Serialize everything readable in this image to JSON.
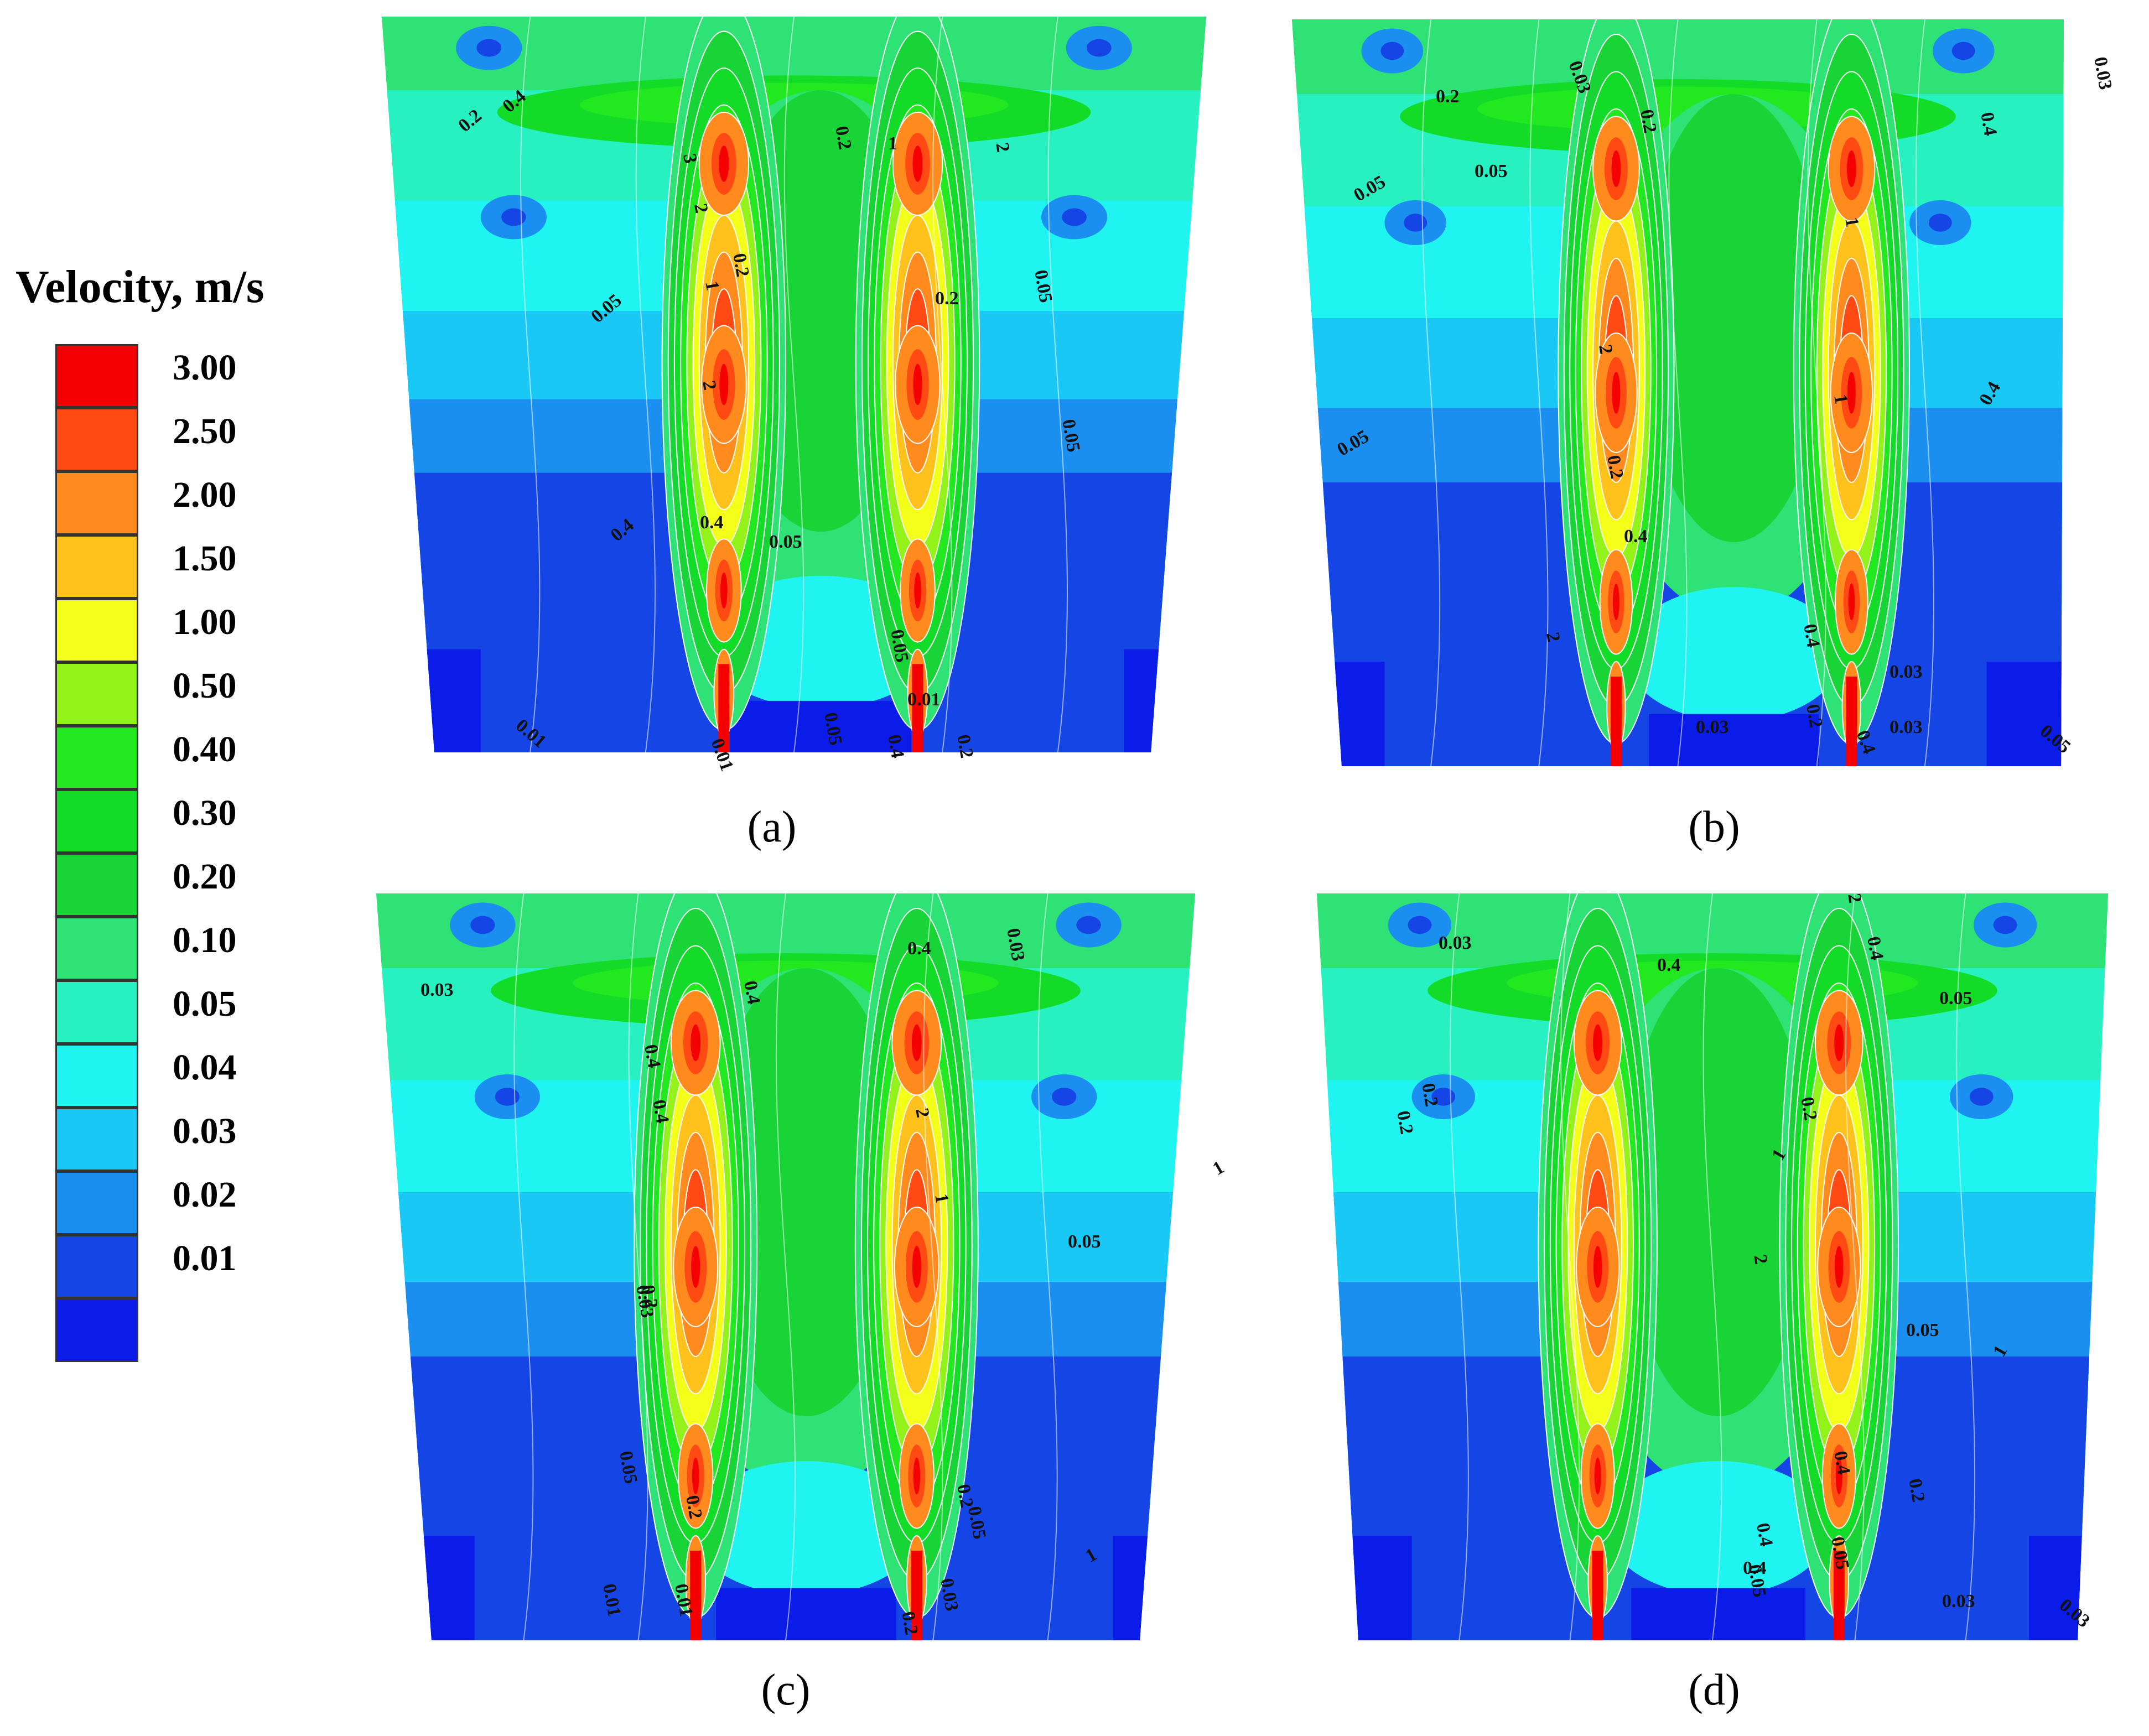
{
  "legend": {
    "title": "Velocity, m/s",
    "levels": [
      {
        "value": "3.00",
        "color": "#f40000"
      },
      {
        "value": "2.50",
        "color": "#ff4a14"
      },
      {
        "value": "2.00",
        "color": "#ff8a1e"
      },
      {
        "value": "1.50",
        "color": "#ffc21c"
      },
      {
        "value": "1.00",
        "color": "#f3ff18"
      },
      {
        "value": "0.50",
        "color": "#92f21a"
      },
      {
        "value": "0.40",
        "color": "#22e820"
      },
      {
        "value": "0.30",
        "color": "#12dc28"
      },
      {
        "value": "0.20",
        "color": "#18d437"
      },
      {
        "value": "0.10",
        "color": "#2ee276"
      },
      {
        "value": "0.05",
        "color": "#27f1c0"
      },
      {
        "value": "0.04",
        "color": "#20f4f0"
      },
      {
        "value": "0.03",
        "color": "#1ac8f5"
      },
      {
        "value": "0.02",
        "color": "#1a8ff0"
      },
      {
        "value": "0.01",
        "color": "#1545e4"
      },
      {
        "value": "",
        "color": "#0b1be8"
      }
    ]
  },
  "chart_data": [
    {
      "type": "heatmap",
      "panel_label": "(a)",
      "colorbar_title": "Velocity, m/s",
      "colorbar_levels": [
        3.0,
        2.5,
        2.0,
        1.5,
        1.0,
        0.5,
        0.4,
        0.3,
        0.2,
        0.1,
        0.05,
        0.04,
        0.03,
        0.02,
        0.01
      ],
      "contour_labels": [
        "0.4",
        "0.2",
        "3",
        "2",
        "1",
        "2",
        "0.4",
        "0.2",
        "2",
        "1",
        "0.2",
        "0.2",
        "0.05",
        "0.05",
        "0.05",
        "0.4",
        "0.05",
        "0.05",
        "0.05",
        "0.01",
        "0.01",
        "0.01",
        "0.4",
        "0.2"
      ]
    },
    {
      "type": "heatmap",
      "panel_label": "(b)",
      "colorbar_title": "Velocity, m/s",
      "colorbar_levels": [
        3.0,
        2.5,
        2.0,
        1.5,
        1.0,
        0.5,
        0.4,
        0.3,
        0.2,
        0.1,
        0.05,
        0.04,
        0.03,
        0.02,
        0.01
      ],
      "contour_labels": [
        "0.2",
        "0.4",
        "0.03",
        "0.05",
        "0.05",
        "0.03",
        "1",
        "2",
        "0.2",
        "0.4",
        "0.2",
        "1",
        "0.4",
        "2",
        "0.05",
        "0.03",
        "0.4",
        "0.05",
        "0.2",
        "0.4",
        "0.03",
        "0.03"
      ]
    },
    {
      "type": "heatmap",
      "panel_label": "(c)",
      "colorbar_title": "Velocity, m/s",
      "colorbar_levels": [
        3.0,
        2.5,
        2.0,
        1.5,
        1.0,
        0.5,
        0.4,
        0.3,
        0.2,
        0.1,
        0.05,
        0.04,
        0.03,
        0.02,
        0.01
      ],
      "contour_labels": [
        "0.03",
        "0.2",
        "0.4",
        "0.03",
        "0.4",
        "0.4",
        "1",
        "0.4",
        "2",
        "1",
        "0.05",
        "0.03",
        "0.2",
        "0.05",
        "0.2",
        "0.05",
        "1",
        "0.01",
        "0.03",
        "0.01",
        "0.2"
      ]
    },
    {
      "type": "heatmap",
      "panel_label": "(d)",
      "colorbar_title": "Velocity, m/s",
      "colorbar_levels": [
        3.0,
        2.5,
        2.0,
        1.5,
        1.0,
        0.5,
        0.4,
        0.3,
        0.2,
        0.1,
        0.05,
        0.04,
        0.03,
        0.02,
        0.01
      ],
      "contour_labels": [
        "0.03",
        "0.4",
        "0.2",
        "0.4",
        "0.05",
        "0.2",
        "0.2",
        "1",
        "2",
        "2",
        "0.05",
        "1",
        "0.2",
        "0.4",
        "0.4",
        "0.05",
        "0.03",
        "0.4",
        "0.05",
        "0.03"
      ]
    }
  ]
}
